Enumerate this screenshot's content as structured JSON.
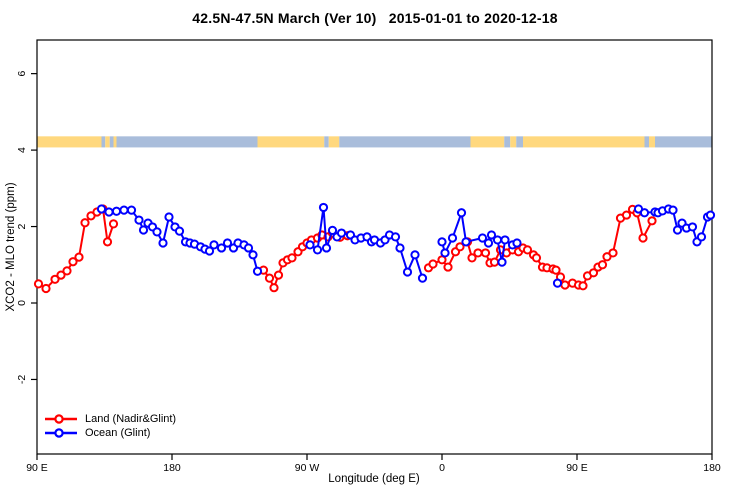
{
  "chart_data": {
    "type": "line",
    "title": "42.5N-47.5N March (Ver 10)   2015-01-01 to 2020-12-18",
    "xlabel": "Longitude (deg E)",
    "ylabel": "XCO2 - MLO trend (ppm)",
    "grid": false,
    "legend_position": "bottom-left-inside",
    "x_axis": {
      "range": [
        90,
        540
      ],
      "ticks": [
        {
          "pos": 90,
          "label": "90 E"
        },
        {
          "pos": 180,
          "label": "180"
        },
        {
          "pos": 270,
          "label": "90 W"
        },
        {
          "pos": 360,
          "label": "0"
        },
        {
          "pos": 450,
          "label": "90 E"
        },
        {
          "pos": 540,
          "label": "180"
        }
      ]
    },
    "y_axis": {
      "range": [
        -3.95,
        6.88
      ],
      "ticks": [
        {
          "value": 6,
          "label": "6"
        },
        {
          "value": 4,
          "label": "4"
        },
        {
          "value": 2,
          "label": "2"
        },
        {
          "value": 0,
          "label": "0"
        },
        {
          "value": -2,
          "label": "-2"
        }
      ]
    },
    "series": [
      {
        "name": "Land (Nadir&Glint)",
        "color": "#ff0000",
        "marker": "open-circle",
        "segments": [
          [
            [
              91,
              0.5
            ],
            [
              96,
              0.38
            ],
            [
              102,
              0.62
            ],
            [
              106,
              0.73
            ],
            [
              110,
              0.84
            ],
            [
              114,
              1.08
            ],
            [
              118,
              1.2
            ],
            [
              122,
              2.1
            ],
            [
              126,
              2.28
            ],
            [
              130,
              2.38
            ],
            [
              134,
              2.46
            ],
            [
              137,
              1.6
            ],
            [
              141,
              2.07
            ]
          ],
          [
            [
              241,
              0.86
            ],
            [
              245,
              0.65
            ],
            [
              248,
              0.4
            ],
            [
              251,
              0.73
            ],
            [
              254,
              1.05
            ],
            [
              257,
              1.13
            ],
            [
              260,
              1.18
            ],
            [
              264,
              1.34
            ],
            [
              267,
              1.47
            ],
            [
              270,
              1.57
            ],
            [
              273,
              1.65
            ],
            [
              277,
              1.7
            ],
            [
              280,
              1.78
            ],
            [
              284,
              1.73
            ],
            [
              287,
              1.83
            ],
            [
              292,
              1.72
            ],
            [
              297,
              1.76
            ]
          ],
          [
            [
              351,
              0.92
            ],
            [
              354,
              1.02
            ],
            [
              360,
              1.13
            ],
            [
              364,
              0.94
            ],
            [
              369,
              1.34
            ],
            [
              372,
              1.47
            ],
            [
              377,
              1.6
            ],
            [
              380,
              1.18
            ],
            [
              384,
              1.31
            ],
            [
              389,
              1.31
            ],
            [
              392,
              1.05
            ],
            [
              395,
              1.07
            ],
            [
              399,
              1.39
            ],
            [
              403,
              1.31
            ],
            [
              407,
              1.39
            ],
            [
              411,
              1.34
            ],
            [
              414,
              1.44
            ],
            [
              417,
              1.39
            ],
            [
              421,
              1.26
            ],
            [
              423,
              1.18
            ],
            [
              427,
              0.94
            ],
            [
              430,
              0.92
            ],
            [
              434,
              0.89
            ],
            [
              436,
              0.86
            ],
            [
              439,
              0.68
            ],
            [
              442,
              0.47
            ],
            [
              447,
              0.52
            ],
            [
              451,
              0.47
            ],
            [
              454,
              0.45
            ],
            [
              457,
              0.71
            ],
            [
              461,
              0.79
            ],
            [
              464,
              0.94
            ],
            [
              467,
              1.0
            ],
            [
              470,
              1.21
            ],
            [
              474,
              1.31
            ],
            [
              479,
              2.22
            ],
            [
              483,
              2.3
            ],
            [
              487,
              2.45
            ],
            [
              490,
              2.36
            ],
            [
              494,
              1.7
            ],
            [
              500,
              2.15
            ]
          ]
        ]
      },
      {
        "name": "Ocean (Glint)",
        "color": "#0000ff",
        "marker": "open-circle",
        "segments": [
          [
            [
              133,
              2.46
            ],
            [
              138,
              2.38
            ],
            [
              143,
              2.4
            ],
            [
              148,
              2.43
            ],
            [
              153,
              2.43
            ],
            [
              158,
              2.17
            ],
            [
              161,
              1.91
            ],
            [
              164,
              2.09
            ],
            [
              167,
              1.99
            ],
            [
              170,
              1.86
            ],
            [
              174,
              1.57
            ],
            [
              178,
              2.25
            ],
            [
              182,
              1.99
            ],
            [
              185,
              1.88
            ],
            [
              189,
              1.6
            ],
            [
              192,
              1.57
            ],
            [
              195,
              1.54
            ],
            [
              199,
              1.47
            ],
            [
              202,
              1.41
            ],
            [
              205,
              1.36
            ],
            [
              208,
              1.52
            ],
            [
              213,
              1.44
            ],
            [
              217,
              1.57
            ],
            [
              221,
              1.44
            ],
            [
              224,
              1.57
            ],
            [
              228,
              1.52
            ],
            [
              231,
              1.44
            ],
            [
              234,
              1.26
            ],
            [
              237,
              0.83
            ]
          ],
          [
            [
              272,
              1.52
            ],
            [
              277,
              1.39
            ],
            [
              281,
              2.5
            ],
            [
              283,
              1.44
            ],
            [
              287,
              1.9
            ],
            [
              290,
              1.73
            ],
            [
              293,
              1.83
            ],
            [
              299,
              1.78
            ],
            [
              302,
              1.65
            ],
            [
              306,
              1.7
            ],
            [
              310,
              1.73
            ],
            [
              313,
              1.6
            ],
            [
              315,
              1.65
            ],
            [
              319,
              1.57
            ],
            [
              322,
              1.65
            ],
            [
              325,
              1.78
            ],
            [
              329,
              1.73
            ],
            [
              332,
              1.44
            ],
            [
              337,
              0.81
            ],
            [
              342,
              1.26
            ],
            [
              347,
              0.65
            ]
          ],
          [
            [
              360,
              1.6
            ],
            [
              362,
              1.31
            ],
            [
              367,
              1.7
            ],
            [
              373,
              2.36
            ],
            [
              376,
              1.6
            ],
            [
              387,
              1.7
            ],
            [
              391,
              1.57
            ],
            [
              393,
              1.78
            ],
            [
              397,
              1.65
            ],
            [
              400,
              1.07
            ],
            [
              402,
              1.65
            ],
            [
              407,
              1.52
            ],
            [
              410,
              1.57
            ]
          ],
          [
            [
              437,
              0.52
            ]
          ],
          [
            [
              491,
              2.46
            ],
            [
              495,
              2.36
            ],
            [
              502,
              2.38
            ],
            [
              504,
              2.36
            ],
            [
              507,
              2.41
            ],
            [
              511,
              2.46
            ],
            [
              514,
              2.43
            ],
            [
              517,
              1.91
            ],
            [
              520,
              2.09
            ],
            [
              523,
              1.96
            ],
            [
              527,
              1.99
            ],
            [
              530,
              1.6
            ],
            [
              533,
              1.73
            ],
            [
              537,
              2.25
            ],
            [
              539,
              2.3
            ]
          ]
        ]
      }
    ],
    "map_strip": {
      "description": "land-ocean map band across longitudes",
      "value_range": [
        4.07,
        4.36
      ],
      "land_color": "#ffd87e",
      "ocean_color": "#a9bddb",
      "segments": [
        {
          "from": 90,
          "to": 133,
          "type": "land"
        },
        {
          "from": 133,
          "to": 135.5,
          "type": "ocean"
        },
        {
          "from": 135.5,
          "to": 138.5,
          "type": "land"
        },
        {
          "from": 138.5,
          "to": 141,
          "type": "ocean"
        },
        {
          "from": 141,
          "to": 143,
          "type": "land"
        },
        {
          "from": 143,
          "to": 237,
          "type": "ocean"
        },
        {
          "from": 237,
          "to": 281.5,
          "type": "land"
        },
        {
          "from": 281.5,
          "to": 284.5,
          "type": "ocean"
        },
        {
          "from": 284.5,
          "to": 291.5,
          "type": "land"
        },
        {
          "from": 291.5,
          "to": 379,
          "type": "ocean"
        },
        {
          "from": 379,
          "to": 401.5,
          "type": "land"
        },
        {
          "from": 401.5,
          "to": 405.5,
          "type": "ocean"
        },
        {
          "from": 405.5,
          "to": 409.5,
          "type": "land"
        },
        {
          "from": 409.5,
          "to": 414,
          "type": "ocean"
        },
        {
          "from": 414,
          "to": 495,
          "type": "land"
        },
        {
          "from": 495,
          "to": 498,
          "type": "ocean"
        },
        {
          "from": 498,
          "to": 502,
          "type": "land"
        },
        {
          "from": 502,
          "to": 540,
          "type": "ocean"
        }
      ]
    }
  }
}
